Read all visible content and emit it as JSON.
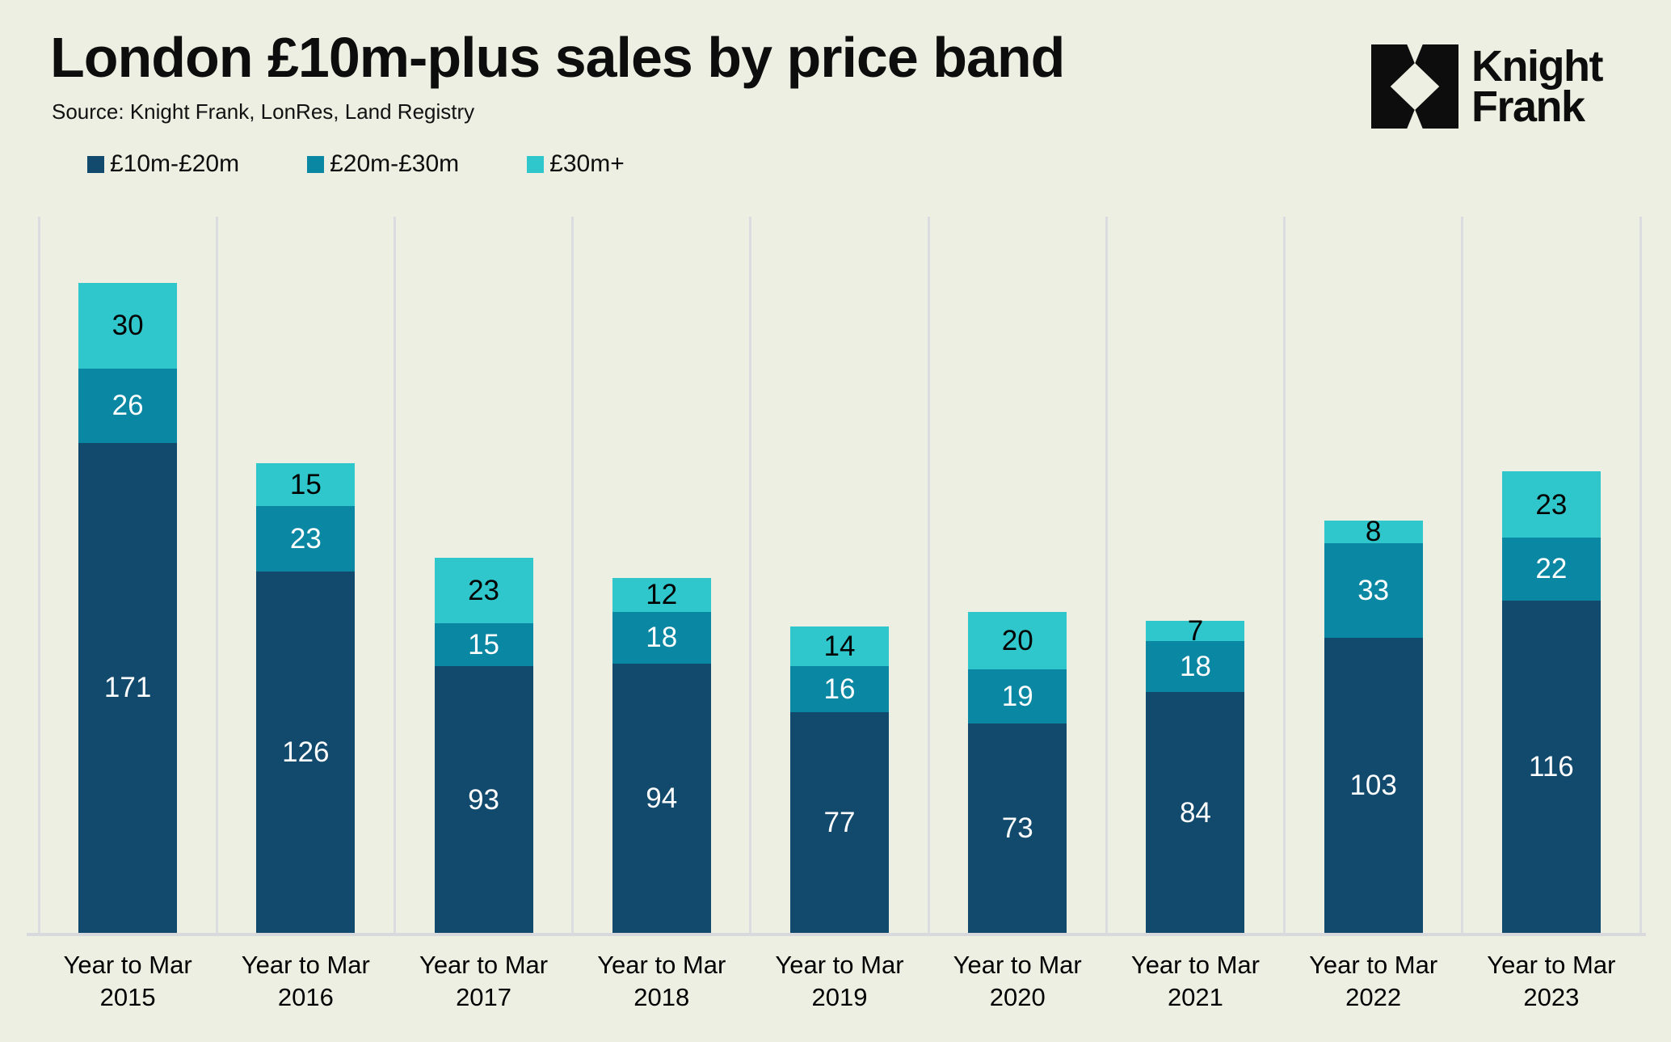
{
  "page": {
    "background": "#EEEFE3"
  },
  "header": {
    "title": "London £10m-plus sales by price band",
    "source": "Source: Knight Frank, LonRes, Land Registry"
  },
  "logo": {
    "line1": "Knight",
    "line2": "Frank",
    "mark_color": "#0d0d0d"
  },
  "legend": {
    "position": "top-left",
    "items": [
      {
        "label": "£10m-£20m",
        "color": "#124A6E"
      },
      {
        "label": "£20m-£30m",
        "color": "#0A87A3"
      },
      {
        "label": "£30m+",
        "color": "#2FC7CC"
      }
    ]
  },
  "chart_data": {
    "type": "bar",
    "stacked": true,
    "title": "London £10m-plus sales by price band",
    "categories": [
      {
        "line1": "Year to Mar",
        "line2": "2015"
      },
      {
        "line1": "Year to Mar",
        "line2": "2016"
      },
      {
        "line1": "Year to Mar",
        "line2": "2017"
      },
      {
        "line1": "Year to Mar",
        "line2": "2018"
      },
      {
        "line1": "Year to Mar",
        "line2": "2019"
      },
      {
        "line1": "Year to Mar",
        "line2": "2020"
      },
      {
        "line1": "Year to Mar",
        "line2": "2021"
      },
      {
        "line1": "Year to Mar",
        "line2": "2022"
      },
      {
        "line1": "Year to Mar",
        "line2": "2023"
      }
    ],
    "series": [
      {
        "name": "£10m-£20m",
        "color": "#124A6E",
        "label_color": "#FFFFFF",
        "values": [
          171,
          126,
          93,
          94,
          77,
          73,
          84,
          103,
          116
        ]
      },
      {
        "name": "£20m-£30m",
        "color": "#0A87A3",
        "label_color": "#FFFFFF",
        "values": [
          26,
          23,
          15,
          18,
          16,
          19,
          18,
          33,
          22
        ]
      },
      {
        "name": "£30m+",
        "color": "#2FC7CC",
        "label_color": "#000000",
        "values": [
          30,
          15,
          23,
          12,
          14,
          20,
          7,
          8,
          23
        ]
      }
    ],
    "ylim": [
      0,
      250
    ],
    "xlabel": "",
    "ylabel": "",
    "grid": "vertical-category-boundaries",
    "gridline_color": "#DBDCDF",
    "axis_line_color": "#D8D9DC",
    "legend_position": "top-left",
    "value_labels": "inside-center"
  }
}
